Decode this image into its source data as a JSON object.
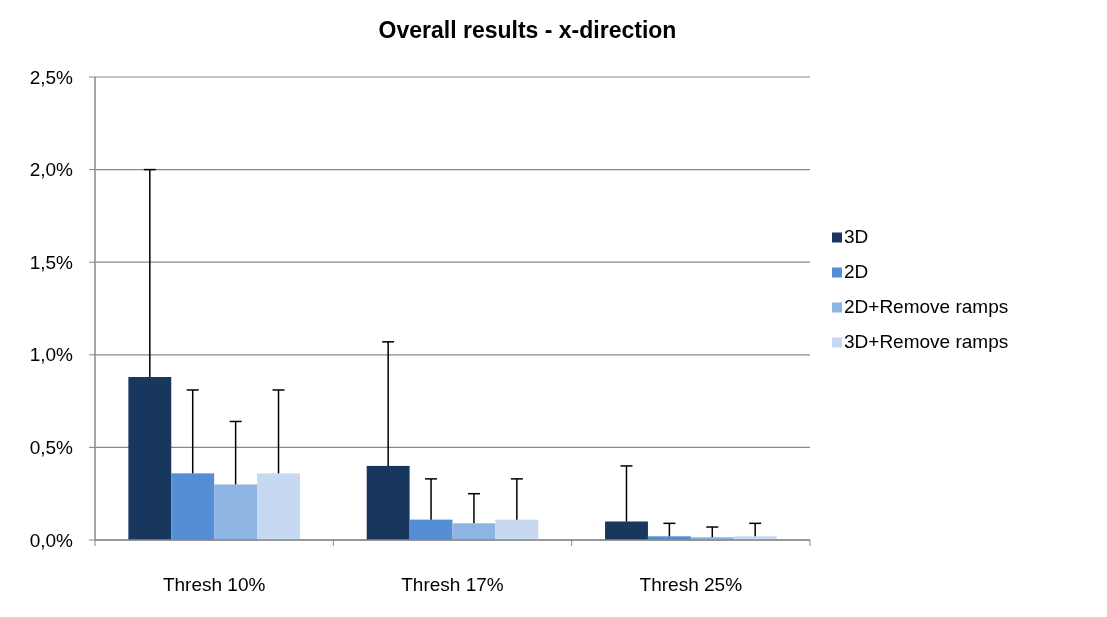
{
  "chart_data": {
    "type": "bar",
    "title": "Overall results - x-direction",
    "categories": [
      "Thresh 10%",
      "Thresh 17%",
      "Thresh 25%"
    ],
    "series": [
      {
        "name": "3D",
        "color": "#17375e",
        "values": [
          0.88,
          0.4,
          0.1
        ],
        "errors": [
          [
            0.88,
            2.0
          ],
          [
            0.4,
            1.07
          ],
          [
            0.1,
            0.4
          ]
        ]
      },
      {
        "name": "2D",
        "color": "#558ed5",
        "values": [
          0.36,
          0.11,
          0.02
        ],
        "errors": [
          [
            0.36,
            0.81
          ],
          [
            0.11,
            0.33
          ],
          [
            0.02,
            0.09
          ]
        ]
      },
      {
        "name": "2D+Remove ramps",
        "color": "#8eb4e3",
        "values": [
          0.3,
          0.09,
          0.015
        ],
        "errors": [
          [
            0.3,
            0.64
          ],
          [
            0.09,
            0.25
          ],
          [
            0.015,
            0.07
          ]
        ]
      },
      {
        "name": "3D+Remove ramps",
        "color": "#c6d9f1",
        "values": [
          0.36,
          0.11,
          0.02
        ],
        "errors": [
          [
            0.36,
            0.81
          ],
          [
            0.11,
            0.33
          ],
          [
            0.02,
            0.09
          ]
        ]
      }
    ],
    "ylim": [
      0,
      2.5
    ],
    "yticks": [
      {
        "value": 0,
        "label": "0,0%"
      },
      {
        "value": 0.5,
        "label": "0,5%"
      },
      {
        "value": 1,
        "label": "1,0%"
      },
      {
        "value": 1.5,
        "label": "1,5%"
      },
      {
        "value": 2,
        "label": "2,0%"
      },
      {
        "value": 2.5,
        "label": "2,5%"
      }
    ],
    "grid": "y",
    "legend": "right"
  }
}
